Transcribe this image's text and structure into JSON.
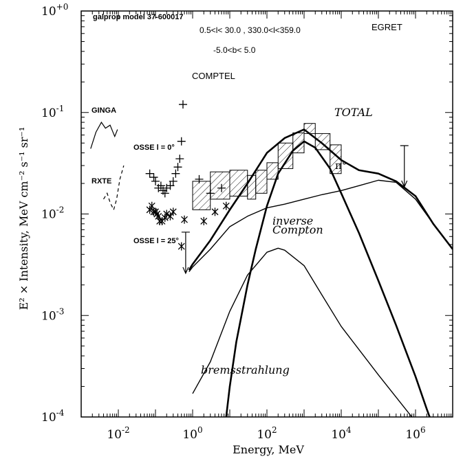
{
  "chart_data": {
    "type": "line",
    "title": "galprop model 37-600017",
    "region_lines": [
      "0.5<l< 30.0 , 330.0<l<359.0",
      "-5.0<b< 5.0"
    ],
    "xlabel": "Energy, MeV",
    "ylabel": "E² × Intensity, MeV cm⁻² s⁻¹ sr⁻¹",
    "xscale": "log",
    "yscale": "log",
    "xlim": [
      0.001,
      10000000
    ],
    "ylim": [
      0.0001,
      1
    ],
    "x_ticks": [
      {
        "value": 0.01,
        "base": "10",
        "exp": "-2"
      },
      {
        "value": 1,
        "base": "10",
        "exp": "0"
      },
      {
        "value": 100,
        "base": "10",
        "exp": "2"
      },
      {
        "value": 10000,
        "base": "10",
        "exp": "4"
      },
      {
        "value": 1000000,
        "base": "10",
        "exp": "6"
      }
    ],
    "y_ticks": [
      {
        "value": 0.0001,
        "base": "10",
        "exp": "-4"
      },
      {
        "value": 0.001,
        "base": "10",
        "exp": "-3"
      },
      {
        "value": 0.01,
        "base": "10",
        "exp": "-2"
      },
      {
        "value": 0.1,
        "base": "10",
        "exp": "-1"
      },
      {
        "value": 1,
        "base": "10",
        "exp": "+0"
      }
    ],
    "series": [
      {
        "name": "TOTAL",
        "weight": "thick",
        "x": [
          0.8,
          1,
          3,
          10,
          30,
          100,
          300,
          1000,
          3000,
          10000,
          30000,
          100000,
          300000,
          1000000,
          3000000,
          10000000
        ],
        "y": [
          0.0028,
          0.0032,
          0.0055,
          0.011,
          0.02,
          0.04,
          0.056,
          0.068,
          0.05,
          0.034,
          0.027,
          0.025,
          0.021,
          0.015,
          0.008,
          0.0045
        ]
      },
      {
        "name": "π⁰",
        "weight": "thick",
        "x": [
          8,
          10,
          15,
          30,
          50,
          100,
          200,
          500,
          1000,
          2000,
          5000,
          10000,
          30000,
          100000,
          300000,
          1000000,
          2000000,
          3000000
        ],
        "y": [
          0.0001,
          0.0002,
          0.00055,
          0.002,
          0.0045,
          0.012,
          0.025,
          0.042,
          0.052,
          0.045,
          0.028,
          0.016,
          0.0065,
          0.0022,
          0.0008,
          0.00025,
          0.00012,
          8e-05
        ]
      },
      {
        "name": "inverse Compton",
        "weight": "thin",
        "x": [
          0.8,
          1,
          3,
          10,
          30,
          100,
          300,
          1000,
          3000,
          10000,
          30000,
          100000,
          300000,
          1000000,
          3000000,
          10000000
        ],
        "y": [
          0.0027,
          0.003,
          0.0045,
          0.0075,
          0.0095,
          0.0115,
          0.0125,
          0.014,
          0.0155,
          0.017,
          0.019,
          0.0215,
          0.0205,
          0.014,
          0.008,
          0.0045
        ]
      },
      {
        "name": "bremsstrahlung",
        "weight": "thin",
        "x": [
          1,
          3,
          10,
          30,
          100,
          200,
          300,
          1000,
          3000,
          10000,
          100000,
          1000000,
          3000000
        ],
        "y": [
          0.00017,
          0.00035,
          0.0011,
          0.0025,
          0.0042,
          0.0046,
          0.0044,
          0.0031,
          0.0016,
          0.00078,
          0.00026,
          9e-05,
          6e-05
        ]
      }
    ],
    "series_labels": [
      {
        "series": "TOTAL",
        "text": "TOTAL"
      },
      {
        "series": "π⁰",
        "text": "π°"
      },
      {
        "series": "inverse Compton",
        "text": "inverse"
      },
      {
        "series": "inverse Compton",
        "text": "Compton"
      },
      {
        "series": "bremsstrahlung",
        "text": "bremsstrahlung"
      }
    ],
    "data_sets": [
      {
        "name": "GINGA",
        "x": [
          0.0018,
          0.0025,
          0.0035,
          0.0045,
          0.006,
          0.008,
          0.0095
        ],
        "y": [
          0.044,
          0.064,
          0.08,
          0.07,
          0.075,
          0.058,
          0.068
        ]
      },
      {
        "name": "RXTE",
        "x": [
          0.004,
          0.005,
          0.006,
          0.0075,
          0.009,
          0.011,
          0.014
        ],
        "y": [
          0.014,
          0.016,
          0.013,
          0.011,
          0.014,
          0.022,
          0.03
        ]
      },
      {
        "name": "OSSE l = 0°",
        "marker": "plus",
        "x": [
          0.07,
          0.09,
          0.1,
          0.12,
          0.14,
          0.16,
          0.18,
          0.2,
          0.25,
          0.3,
          0.35,
          0.4,
          0.45,
          0.5,
          0.55
        ],
        "y": [
          0.025,
          0.023,
          0.021,
          0.018,
          0.019,
          0.017,
          0.016,
          0.018,
          0.019,
          0.021,
          0.025,
          0.029,
          0.035,
          0.052,
          0.12
        ]
      },
      {
        "name": "OSSE l = 25°",
        "marker": "asterisk",
        "x": [
          0.07,
          0.08,
          0.09,
          0.1,
          0.11,
          0.12,
          0.13,
          0.15,
          0.18,
          0.2,
          0.25,
          0.3,
          0.5,
          0.6
        ],
        "y": [
          0.011,
          0.012,
          0.0105,
          0.0105,
          0.01,
          0.0095,
          0.0085,
          0.0085,
          0.0092,
          0.01,
          0.0095,
          0.0105,
          0.0048,
          0.0088
        ]
      },
      {
        "name": "COMPTEL",
        "marker": "plus",
        "x": [
          1.5,
          3,
          6
        ],
        "y": [
          0.022,
          0.016,
          0.018
        ]
      },
      {
        "name": "COMPTEL",
        "marker": "asterisk",
        "x": [
          2,
          4,
          8
        ],
        "y": [
          0.0085,
          0.0105,
          0.012
        ]
      }
    ],
    "upper_limits": [
      {
        "x": 0.65,
        "y": 0.0026
      },
      {
        "x": 500000,
        "y": 0.0185
      }
    ],
    "hatched_boxes": [
      {
        "xmin": 1,
        "xmax": 3,
        "ymin": 0.011,
        "ymax": 0.021
      },
      {
        "xmin": 3,
        "xmax": 10,
        "ymin": 0.014,
        "ymax": 0.026
      },
      {
        "xmin": 10,
        "xmax": 30,
        "ymin": 0.015,
        "ymax": 0.027
      },
      {
        "xmin": 30,
        "xmax": 50,
        "ymin": 0.014,
        "ymax": 0.024
      },
      {
        "xmin": 50,
        "xmax": 100,
        "ymin": 0.016,
        "ymax": 0.027
      },
      {
        "xmin": 100,
        "xmax": 200,
        "ymin": 0.022,
        "ymax": 0.032
      },
      {
        "xmin": 200,
        "xmax": 500,
        "ymin": 0.028,
        "ymax": 0.05
      },
      {
        "xmin": 500,
        "xmax": 1000,
        "ymin": 0.04,
        "ymax": 0.063
      },
      {
        "xmin": 1000,
        "xmax": 2000,
        "ymin": 0.062,
        "ymax": 0.078
      },
      {
        "xmin": 2000,
        "xmax": 5000,
        "ymin": 0.043,
        "ymax": 0.062
      },
      {
        "xmin": 5000,
        "xmax": 10000,
        "ymin": 0.025,
        "ymax": 0.048
      }
    ],
    "instrument_labels": [
      "EGRET",
      "COMPTEL",
      "GINGA",
      "RXTE",
      "OSSE l = 0°",
      "OSSE l = 25°"
    ]
  }
}
